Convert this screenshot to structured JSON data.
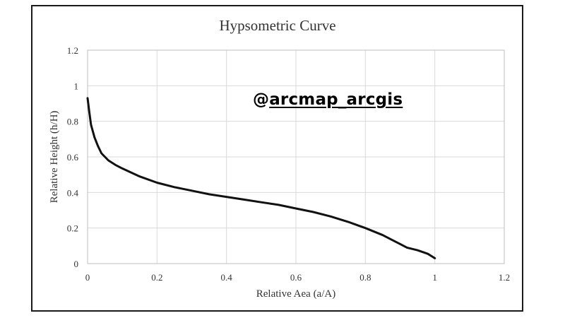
{
  "chart_data": {
    "type": "line",
    "title": "Hypsometric Curve",
    "xlabel": "Relative Aea (a/A)",
    "ylabel": "Relative Height (h/H)",
    "xlim": [
      0,
      1.2
    ],
    "ylim": [
      0,
      1.2
    ],
    "x_ticks": [
      "0",
      "0.2",
      "0.4",
      "0.6",
      "0.8",
      "1",
      "1.2"
    ],
    "y_ticks": [
      "0",
      "0.2",
      "0.4",
      "0.6",
      "0.8",
      "1",
      "1.2"
    ],
    "grid": true,
    "legend": "none",
    "line_color": "#111111",
    "series": [
      {
        "x": [
          0,
          0.005,
          0.01,
          0.02,
          0.03,
          0.04,
          0.05,
          0.06,
          0.08,
          0.1,
          0.15,
          0.2,
          0.25,
          0.3,
          0.35,
          0.4,
          0.45,
          0.5,
          0.55,
          0.6,
          0.65,
          0.7,
          0.75,
          0.8,
          0.85,
          0.88,
          0.9,
          0.92,
          0.95,
          0.98,
          1.0
        ],
        "y": [
          0.93,
          0.85,
          0.78,
          0.71,
          0.66,
          0.62,
          0.6,
          0.58,
          0.555,
          0.535,
          0.49,
          0.455,
          0.43,
          0.41,
          0.39,
          0.375,
          0.36,
          0.345,
          0.33,
          0.31,
          0.29,
          0.265,
          0.235,
          0.2,
          0.16,
          0.13,
          0.11,
          0.09,
          0.075,
          0.055,
          0.03
        ]
      }
    ]
  },
  "watermark": {
    "icon": "threads-icon",
    "handle": "arcmap_arcgis"
  }
}
